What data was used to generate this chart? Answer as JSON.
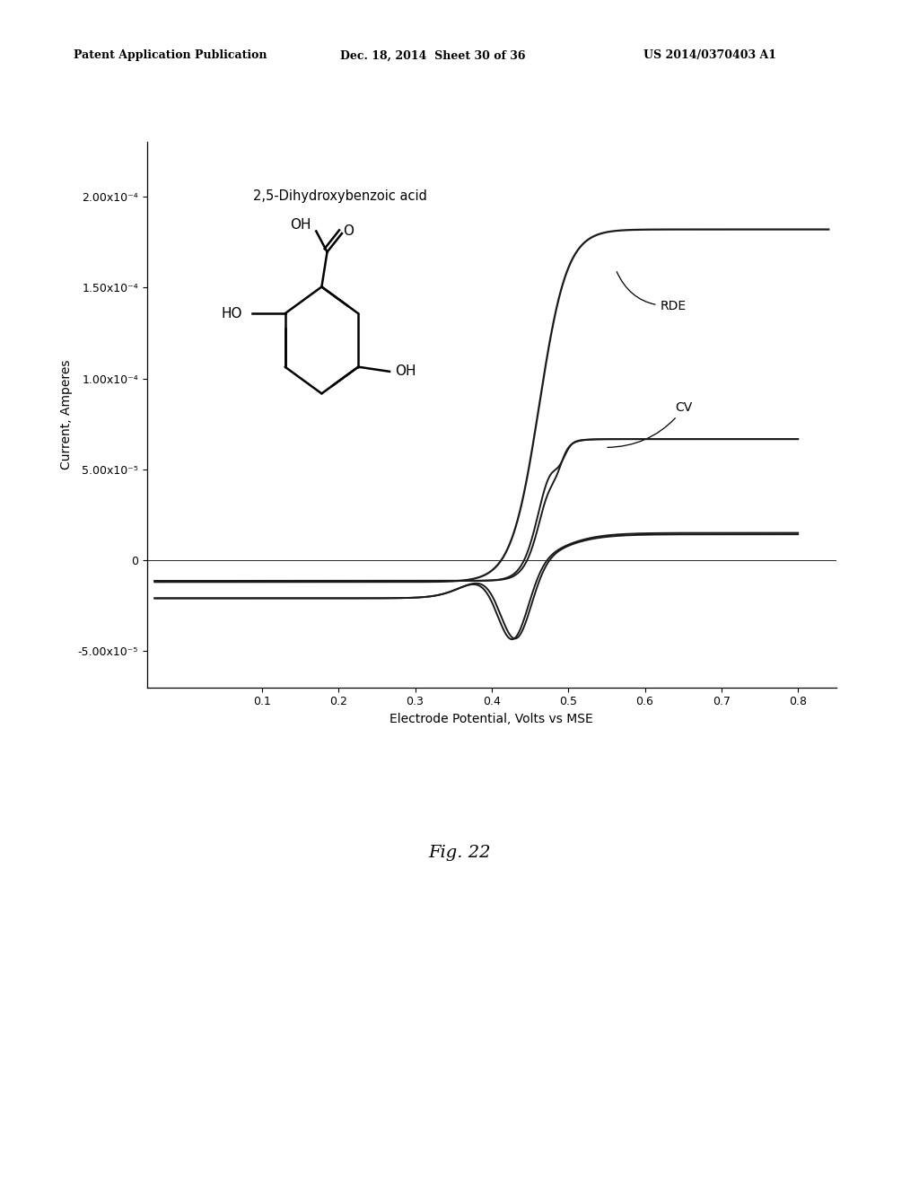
{
  "header_left": "Patent Application Publication",
  "header_mid": "Dec. 18, 2014  Sheet 30 of 36",
  "header_right": "US 2014/0370403 A1",
  "title": "2,5-Dihydroxybenzoic acid",
  "xlabel": "Electrode Potential, Volts vs MSE",
  "ylabel": "Current, Amperes",
  "xlim": [
    -0.05,
    0.85
  ],
  "ylim": [
    -7e-05,
    0.00023
  ],
  "xticks": [
    0.1,
    0.2,
    0.3,
    0.4,
    0.5,
    0.6,
    0.7,
    0.8
  ],
  "yticks": [
    -5e-05,
    0,
    5e-05,
    0.0001,
    0.00015,
    0.0002
  ],
  "ytick_labels": [
    "-5.00x10⁻⁵",
    "0",
    "5.00x10⁻⁵",
    "1.00x10⁻⁴",
    "1.50x10⁻⁴",
    "2.00x10⁻⁴"
  ],
  "fig_label": "Fig. 22",
  "bg_color": "#ffffff",
  "line_color": "#1a1a1a",
  "rde_label": "RDE",
  "cv_label": "CV"
}
